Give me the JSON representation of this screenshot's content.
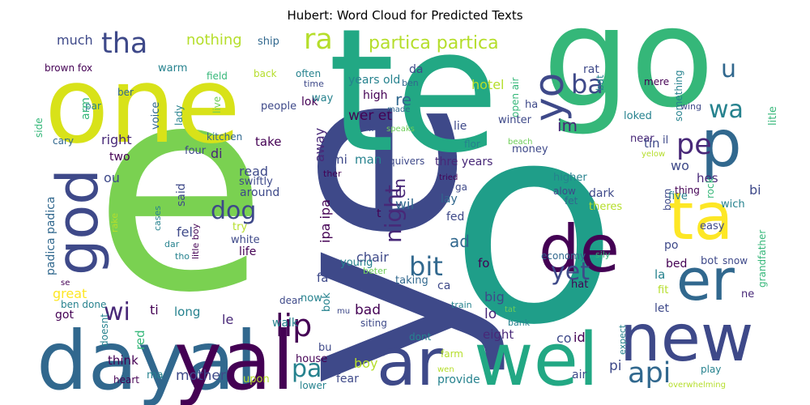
{
  "title": "Hubert: Word Cloud for Predicted Texts",
  "palette": [
    "#440154",
    "#482878",
    "#3e4989",
    "#31688e",
    "#26828e",
    "#1f9e89",
    "#35b779",
    "#6ece58",
    "#b5de2b",
    "#fde725"
  ],
  "words": [
    {
      "text": "e",
      "color": "#7ad151"
    },
    {
      "text": "o",
      "color": "#1f9e89"
    },
    {
      "text": "ye",
      "color": "#3e4989"
    },
    {
      "text": "te",
      "color": "#22a884"
    },
    {
      "text": "go",
      "color": "#35b779"
    },
    {
      "text": "one",
      "color": "#d8e219"
    },
    {
      "text": "dayal",
      "color": "#31688e"
    },
    {
      "text": "yal",
      "color": "#440154"
    },
    {
      "text": "ar",
      "color": "#3e4989"
    },
    {
      "text": "wel",
      "color": "#22a884"
    },
    {
      "text": "new",
      "color": "#3e4989"
    },
    {
      "text": "er",
      "color": "#31688e"
    },
    {
      "text": "de",
      "color": "#440154"
    },
    {
      "text": "ta",
      "color": "#fde725"
    },
    {
      "text": "p",
      "color": "#31688e"
    },
    {
      "text": "god",
      "color": "#3e4989"
    },
    {
      "text": "yo",
      "color": "#3e4989"
    },
    {
      "text": "tha",
      "color": "#3e4989"
    },
    {
      "text": "ra",
      "color": "#b5de2b"
    },
    {
      "text": "lip",
      "color": "#440154"
    },
    {
      "text": "dog",
      "color": "#3e4989"
    },
    {
      "text": "bit",
      "color": "#31688e"
    },
    {
      "text": "pa",
      "color": "#26828e"
    },
    {
      "text": "api",
      "color": "#31688e"
    },
    {
      "text": "wi",
      "color": "#482878"
    },
    {
      "text": "yet",
      "color": "#3e4989"
    },
    {
      "text": "night",
      "color": "#482878"
    },
    {
      "text": "pe",
      "color": "#482878"
    },
    {
      "text": "ba",
      "color": "#3e4989"
    },
    {
      "text": "wa",
      "color": "#26828e"
    },
    {
      "text": "u",
      "color": "#31688e"
    },
    {
      "text": "partica partica",
      "color": "#b5de2b"
    },
    {
      "text": "much",
      "color": "#3e4989"
    },
    {
      "text": "nothing",
      "color": "#b5de2b"
    },
    {
      "text": "warm",
      "color": "#26828e"
    },
    {
      "text": "ship",
      "color": "#31688e"
    },
    {
      "text": "brown fox",
      "color": "#440154"
    },
    {
      "text": "field",
      "color": "#35b779"
    },
    {
      "text": "often",
      "color": "#26828e"
    },
    {
      "text": "ber",
      "color": "#31688e"
    },
    {
      "text": "par",
      "color": "#26828e"
    },
    {
      "text": "arm",
      "color": "#35b779"
    },
    {
      "text": "live",
      "color": "#6ece58"
    },
    {
      "text": "back",
      "color": "#b5de2b"
    },
    {
      "text": "time",
      "color": "#3e4989"
    },
    {
      "text": "lok",
      "color": "#440154"
    },
    {
      "text": "voice",
      "color": "#31688e"
    },
    {
      "text": "lady",
      "color": "#26828e"
    },
    {
      "text": "four",
      "color": "#3e4989"
    },
    {
      "text": "people",
      "color": "#3e4989"
    },
    {
      "text": "way",
      "color": "#26828e"
    },
    {
      "text": "right",
      "color": "#482878"
    },
    {
      "text": "take",
      "color": "#440154"
    },
    {
      "text": "two",
      "color": "#440154"
    },
    {
      "text": "cary",
      "color": "#31688e"
    },
    {
      "text": "side",
      "color": "#35b779"
    },
    {
      "text": "kitchen",
      "color": "#31688e"
    },
    {
      "text": "re",
      "color": "#31688e"
    },
    {
      "text": "years old",
      "color": "#26828e"
    },
    {
      "text": "hotel",
      "color": "#b5de2b"
    },
    {
      "text": "open air",
      "color": "#35b779"
    },
    {
      "text": "wer et",
      "color": "#440154"
    },
    {
      "text": "high",
      "color": "#440154"
    },
    {
      "text": "im",
      "color": "#482878"
    },
    {
      "text": "lie",
      "color": "#3e4989"
    },
    {
      "text": "winter",
      "color": "#3e4989"
    },
    {
      "text": "money",
      "color": "#3e4989"
    },
    {
      "text": "made",
      "color": "#31688e"
    },
    {
      "text": "speaks",
      "color": "#6ece58"
    },
    {
      "text": "li",
      "color": "#3e4989"
    },
    {
      "text": "flor",
      "color": "#26828e"
    },
    {
      "text": "beach",
      "color": "#6ece58"
    },
    {
      "text": "rat",
      "color": "#3e4989"
    },
    {
      "text": "bat",
      "color": "#26828e"
    },
    {
      "text": "ha",
      "color": "#3e4989"
    },
    {
      "text": "mere",
      "color": "#440154"
    },
    {
      "text": "something",
      "color": "#26828e"
    },
    {
      "text": "wing",
      "color": "#3e4989"
    },
    {
      "text": "loked",
      "color": "#26828e"
    },
    {
      "text": "near",
      "color": "#482878"
    },
    {
      "text": "hes",
      "color": "#482878"
    },
    {
      "text": "tin",
      "color": "#3e4989"
    },
    {
      "text": "il",
      "color": "#3e4989"
    },
    {
      "text": "yelow",
      "color": "#b5de2b"
    },
    {
      "text": "litle",
      "color": "#35b779"
    },
    {
      "text": "away",
      "color": "#482878"
    },
    {
      "text": "di",
      "color": "#482878"
    },
    {
      "text": "read",
      "color": "#3e4989"
    },
    {
      "text": "mi",
      "color": "#3e4989"
    },
    {
      "text": "ou",
      "color": "#3e4989"
    },
    {
      "text": "swiftly",
      "color": "#3e4989"
    },
    {
      "text": "said",
      "color": "#3e4989"
    },
    {
      "text": "around",
      "color": "#3e4989"
    },
    {
      "text": "man",
      "color": "#26828e"
    },
    {
      "text": "thre years",
      "color": "#482878"
    },
    {
      "text": "quivers",
      "color": "#3e4989"
    },
    {
      "text": "en",
      "color": "#482878"
    },
    {
      "text": "wil",
      "color": "#31688e"
    },
    {
      "text": "ipa ipa",
      "color": "#440154"
    },
    {
      "text": "ad",
      "color": "#31688e"
    },
    {
      "text": "fel",
      "color": "#3e4989"
    },
    {
      "text": "try",
      "color": "#b5de2b"
    },
    {
      "text": "white",
      "color": "#3e4989"
    },
    {
      "text": "life",
      "color": "#440154"
    },
    {
      "text": "wo",
      "color": "#3e4989"
    },
    {
      "text": "five",
      "color": "#26828e"
    },
    {
      "text": "bi",
      "color": "#3e4989"
    },
    {
      "text": "wich",
      "color": "#26828e"
    },
    {
      "text": "higher",
      "color": "#26828e"
    },
    {
      "text": "alow",
      "color": "#3e4989"
    },
    {
      "text": "fet",
      "color": "#31688e"
    },
    {
      "text": "dark",
      "color": "#3e4989"
    },
    {
      "text": "theres",
      "color": "#b5de2b"
    },
    {
      "text": "born",
      "color": "#3e4989"
    },
    {
      "text": "thing",
      "color": "#440154"
    },
    {
      "text": "rock",
      "color": "#35b779"
    },
    {
      "text": "ga",
      "color": "#3e4989"
    },
    {
      "text": "lay",
      "color": "#31688e"
    },
    {
      "text": "fed",
      "color": "#3e4989"
    },
    {
      "text": "tried",
      "color": "#440154"
    },
    {
      "text": "ther",
      "color": "#440154"
    },
    {
      "text": "cases",
      "color": "#26828e"
    },
    {
      "text": "litle boy",
      "color": "#440154"
    },
    {
      "text": "rake",
      "color": "#b5de2b"
    },
    {
      "text": "padica padica",
      "color": "#31688e"
    },
    {
      "text": "t",
      "color": "#440154"
    },
    {
      "text": "dar",
      "color": "#26828e"
    },
    {
      "text": "tho",
      "color": "#26828e"
    },
    {
      "text": "easy",
      "color": "#3e4989"
    },
    {
      "text": "po",
      "color": "#3e4989"
    },
    {
      "text": "bot",
      "color": "#3e4989"
    },
    {
      "text": "snow",
      "color": "#3e4989"
    },
    {
      "text": "grandfather",
      "color": "#35b779"
    },
    {
      "text": "economy",
      "color": "#31688e"
    },
    {
      "text": "sily",
      "color": "#35b779"
    },
    {
      "text": "bed",
      "color": "#440154"
    },
    {
      "text": "la",
      "color": "#26828e"
    },
    {
      "text": "fit",
      "color": "#b5de2b"
    },
    {
      "text": "ne",
      "color": "#482878"
    },
    {
      "text": "let",
      "color": "#3e4989"
    },
    {
      "text": "hat",
      "color": "#440154"
    },
    {
      "text": "fo",
      "color": "#440154"
    },
    {
      "text": "young",
      "color": "#26828e"
    },
    {
      "text": "chair",
      "color": "#3e4989"
    },
    {
      "text": "beter",
      "color": "#6ece58"
    },
    {
      "text": "taking",
      "color": "#31688e"
    },
    {
      "text": "ca",
      "color": "#3e4989"
    },
    {
      "text": "big",
      "color": "#3e4989"
    },
    {
      "text": "lo",
      "color": "#482878"
    },
    {
      "text": "train",
      "color": "#26828e"
    },
    {
      "text": "tat",
      "color": "#6ece58"
    },
    {
      "text": "bank",
      "color": "#26828e"
    },
    {
      "text": "great",
      "color": "#fde725"
    },
    {
      "text": "se",
      "color": "#440154"
    },
    {
      "text": "ben done",
      "color": "#26828e"
    },
    {
      "text": "got",
      "color": "#440154"
    },
    {
      "text": "doesnt",
      "color": "#26828e"
    },
    {
      "text": "long",
      "color": "#26828e"
    },
    {
      "text": "ti",
      "color": "#440154"
    },
    {
      "text": "le",
      "color": "#482878"
    },
    {
      "text": "dear",
      "color": "#3e4989"
    },
    {
      "text": "now",
      "color": "#26828e"
    },
    {
      "text": "bok",
      "color": "#26828e"
    },
    {
      "text": "fa",
      "color": "#3e4989"
    },
    {
      "text": "bad",
      "color": "#440154"
    },
    {
      "text": "mu",
      "color": "#3e4989"
    },
    {
      "text": "siting",
      "color": "#3e4989"
    },
    {
      "text": "dont",
      "color": "#26828e"
    },
    {
      "text": "eight",
      "color": "#482878"
    },
    {
      "text": "co",
      "color": "#3e4989"
    },
    {
      "text": "id",
      "color": "#440154"
    },
    {
      "text": "walk",
      "color": "#26828e"
    },
    {
      "text": "bu",
      "color": "#3e4989"
    },
    {
      "text": "house",
      "color": "#440154"
    },
    {
      "text": "red",
      "color": "#35b779"
    },
    {
      "text": "think",
      "color": "#440154"
    },
    {
      "text": "ma",
      "color": "#26828e"
    },
    {
      "text": "mother",
      "color": "#3e4989"
    },
    {
      "text": "heart",
      "color": "#440154"
    },
    {
      "text": "upon",
      "color": "#b5de2b"
    },
    {
      "text": "boy",
      "color": "#b5de2b"
    },
    {
      "text": "fear",
      "color": "#3e4989"
    },
    {
      "text": "provide",
      "color": "#26828e"
    },
    {
      "text": "farm",
      "color": "#b5de2b"
    },
    {
      "text": "wen",
      "color": "#b5de2b"
    },
    {
      "text": "lower",
      "color": "#26828e"
    },
    {
      "text": "expect",
      "color": "#26828e"
    },
    {
      "text": "pi",
      "color": "#3e4989"
    },
    {
      "text": "play",
      "color": "#26828e"
    },
    {
      "text": "air",
      "color": "#3e4989"
    },
    {
      "text": "overwhelming",
      "color": "#b5de2b"
    },
    {
      "text": "da",
      "color": "#3e4989"
    },
    {
      "text": "ben",
      "color": "#31688e"
    }
  ]
}
